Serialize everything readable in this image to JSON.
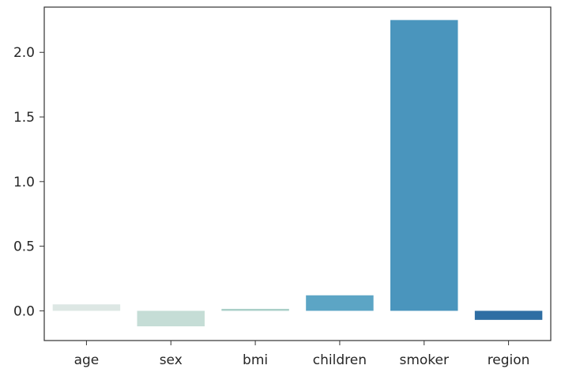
{
  "chart_data": {
    "type": "bar",
    "categories": [
      "age",
      "sex",
      "bmi",
      "children",
      "smoker",
      "region"
    ],
    "values": [
      0.05,
      -0.12,
      0.015,
      0.12,
      2.25,
      -0.07
    ],
    "colors": [
      "#dde7e4",
      "#c5ddd6",
      "#a9cfc7",
      "#5ca5c5",
      "#4a95bd",
      "#2f6ea3"
    ],
    "title": "",
    "xlabel": "",
    "ylabel": "",
    "ylim": [
      -0.23,
      2.35
    ],
    "yticks": [
      0.0,
      0.5,
      1.0,
      1.5,
      2.0
    ],
    "ytick_labels": [
      "0.0",
      "0.5",
      "1.0",
      "1.5",
      "2.0"
    ],
    "grid": false
  }
}
